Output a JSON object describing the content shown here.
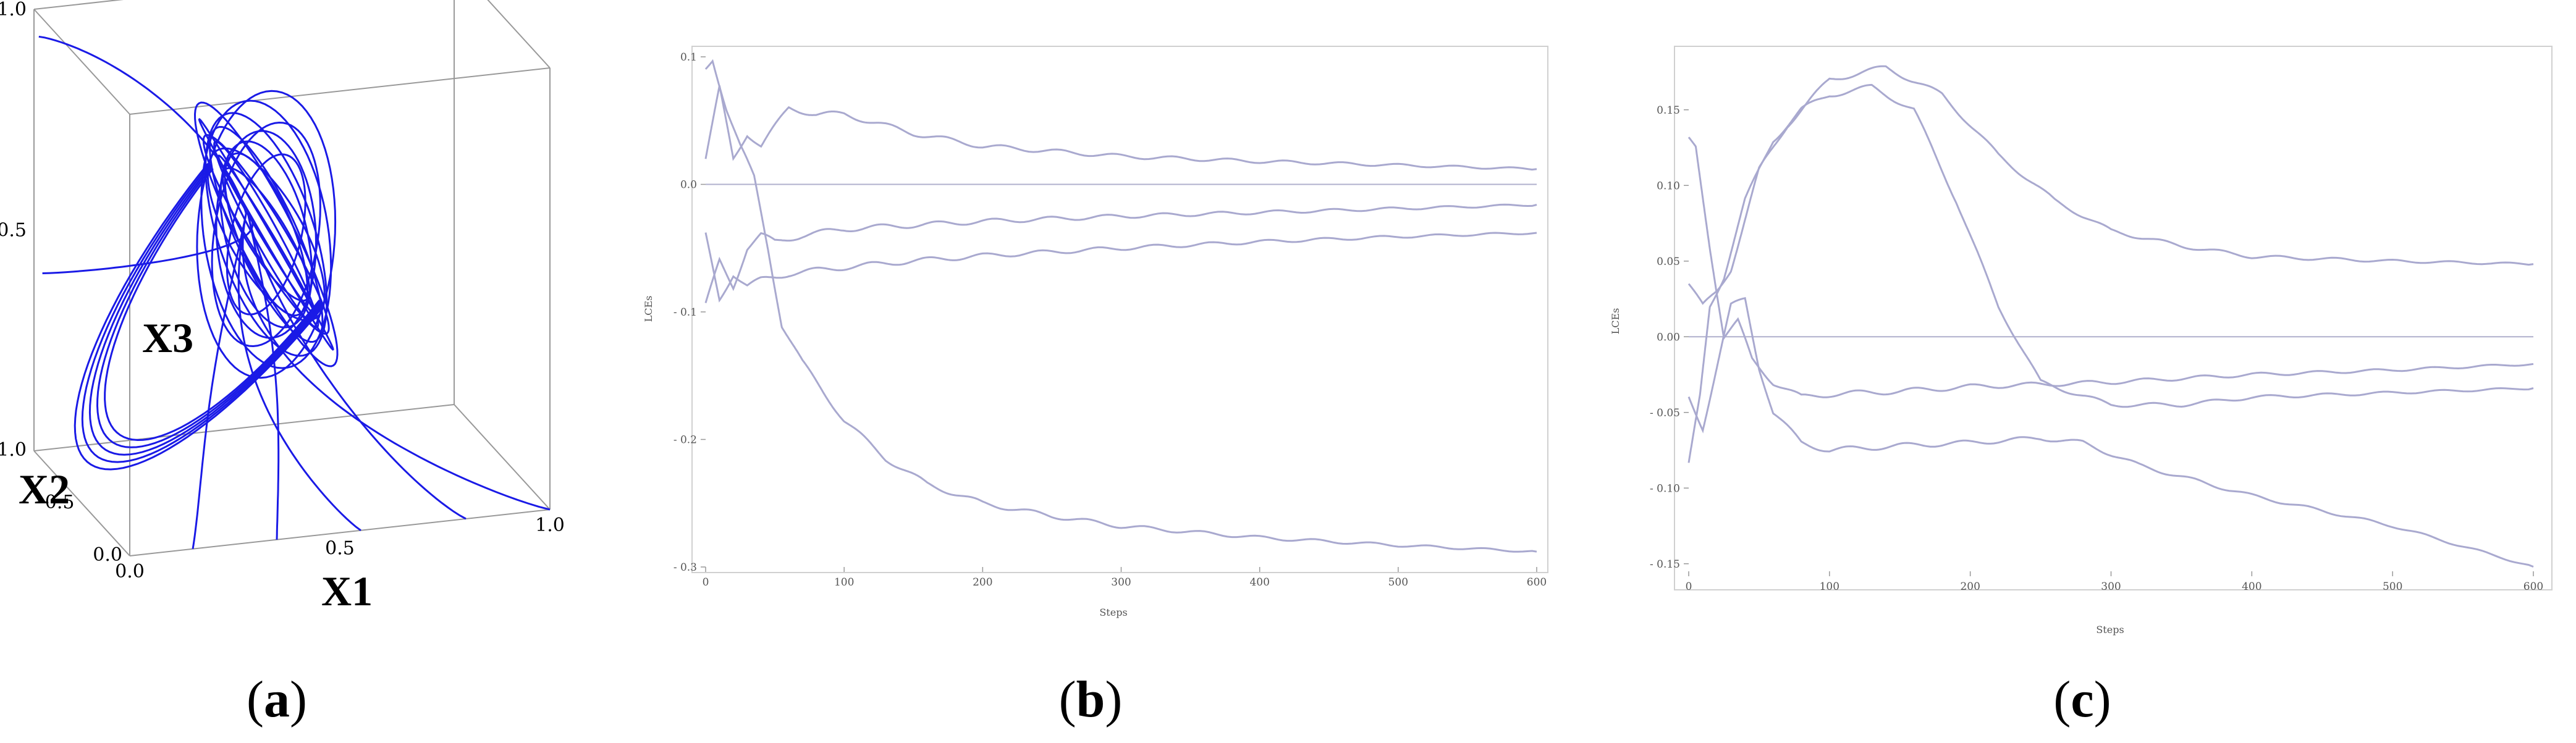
{
  "colors": {
    "series": "#a9a9cf",
    "attractor": "#1a1ae6",
    "frame": "#cccccc",
    "zero": "#b0b0cc"
  },
  "panels": [
    {
      "label_open": "(",
      "label_letter": "a",
      "label_close": ")"
    },
    {
      "label_open": "(",
      "label_letter": "b",
      "label_close": ")"
    },
    {
      "label_open": "(",
      "label_letter": "c",
      "label_close": ")"
    }
  ],
  "chart_data": [
    {
      "type": "line3d",
      "description_visible_axes": [
        "X1",
        "X2",
        "X3"
      ],
      "axes": {
        "x1": {
          "label": "X1",
          "ticks": [
            "0.0",
            "0.5",
            "1.0"
          ],
          "range": [
            0,
            1
          ]
        },
        "x2": {
          "label": "X2",
          "ticks": [
            "0.0",
            "0.5",
            "1.0"
          ],
          "range": [
            0,
            1
          ]
        },
        "x3": {
          "label": "X3",
          "ticks": [
            "0.5",
            "1.0"
          ],
          "range": [
            0,
            1
          ]
        }
      },
      "transient_starts": [
        [
          0.15,
          0,
          0
        ],
        [
          0.35,
          0,
          0
        ],
        [
          0.55,
          0,
          0
        ],
        [
          0.8,
          0,
          0
        ],
        [
          1.0,
          0,
          0
        ],
        [
          0.02,
          1.0,
          0.4
        ],
        [
          0.0,
          0.95,
          0.95
        ]
      ],
      "attractor": {
        "center": [
          0.45,
          0.55,
          0.55
        ],
        "radius": [
          0.18,
          0.22,
          0.28
        ]
      }
    },
    {
      "type": "line",
      "xlabel": "Steps",
      "ylabel": "LCEs",
      "xlim": [
        0,
        600
      ],
      "ylim": [
        -0.3,
        0.1
      ],
      "xticks": [
        0,
        100,
        200,
        300,
        400,
        500,
        600
      ],
      "yticks": [
        0.1,
        0.0,
        -0.1,
        -0.2,
        -0.3
      ],
      "ytick_labels": [
        "0.1",
        "0.0",
        "- 0.1",
        "- 0.2",
        "- 0.3"
      ],
      "series": [
        {
          "x": [
            0,
            10,
            20,
            30,
            40,
            60,
            80,
            100,
            150,
            200,
            300,
            400,
            500,
            600
          ],
          "y": [
            0.02,
            0.075,
            0.02,
            0.04,
            0.03,
            0.06,
            0.055,
            0.055,
            0.04,
            0.03,
            0.022,
            0.018,
            0.015,
            0.012
          ]
        },
        {
          "x": [
            0,
            10,
            20,
            30,
            40,
            50,
            70,
            100,
            150,
            200,
            300,
            400,
            500,
            600
          ],
          "y": [
            -0.095,
            -0.06,
            -0.08,
            -0.05,
            -0.04,
            -0.045,
            -0.04,
            -0.035,
            -0.032,
            -0.029,
            -0.025,
            -0.022,
            -0.019,
            -0.016
          ]
        },
        {
          "x": [
            0,
            10,
            20,
            30,
            40,
            60,
            100,
            150,
            200,
            300,
            400,
            500,
            600
          ],
          "y": [
            -0.04,
            -0.09,
            -0.07,
            -0.08,
            -0.075,
            -0.07,
            -0.065,
            -0.06,
            -0.056,
            -0.05,
            -0.045,
            -0.041,
            -0.038
          ]
        },
        {
          "x": [
            0,
            5,
            15,
            25,
            35,
            45,
            55,
            70,
            100,
            130,
            160,
            200,
            250,
            300,
            400,
            500,
            600
          ],
          "y": [
            0.09,
            0.098,
            0.06,
            0.03,
            0.005,
            -0.05,
            -0.11,
            -0.14,
            -0.185,
            -0.215,
            -0.235,
            -0.25,
            -0.26,
            -0.268,
            -0.277,
            -0.283,
            -0.288
          ]
        }
      ]
    },
    {
      "type": "line",
      "xlabel": "Steps",
      "ylabel": "LCEs",
      "xlim": [
        0,
        600
      ],
      "ylim": [
        -0.155,
        0.185
      ],
      "xticks": [
        0,
        100,
        200,
        300,
        400,
        500,
        600
      ],
      "yticks": [
        0.15,
        0.1,
        0.05,
        0.0,
        -0.05,
        -0.1,
        -0.15
      ],
      "ytick_labels": [
        "0.15",
        "0.10",
        "0.05",
        "0.00",
        "- 0.05",
        "- 0.10",
        "- 0.15"
      ],
      "series": [
        {
          "x": [
            0,
            10,
            20,
            30,
            50,
            70,
            100,
            140,
            180,
            220,
            260,
            300,
            350,
            400,
            500,
            600
          ],
          "y": [
            0.035,
            0.02,
            0.03,
            0.045,
            0.11,
            0.14,
            0.17,
            0.178,
            0.16,
            0.12,
            0.09,
            0.07,
            0.06,
            0.053,
            0.05,
            0.048
          ]
        },
        {
          "x": [
            0,
            8,
            15,
            25,
            40,
            60,
            80,
            100,
            130,
            160,
            190,
            220,
            250,
            300,
            350,
            400,
            500,
            600
          ],
          "y": [
            -0.085,
            -0.04,
            0.02,
            0.04,
            0.09,
            0.13,
            0.15,
            0.16,
            0.165,
            0.15,
            0.09,
            0.02,
            -0.03,
            -0.045,
            -0.045,
            -0.04,
            -0.037,
            -0.034
          ]
        },
        {
          "x": [
            0,
            5,
            15,
            25,
            35,
            45,
            60,
            80,
            100,
            150,
            200,
            300,
            400,
            500,
            600
          ],
          "y": [
            0.13,
            0.125,
            0.06,
            0.0,
            0.01,
            -0.015,
            -0.03,
            -0.04,
            -0.038,
            -0.036,
            -0.033,
            -0.03,
            -0.025,
            -0.022,
            -0.018
          ]
        },
        {
          "x": [
            0,
            10,
            20,
            30,
            40,
            50,
            60,
            80,
            100,
            150,
            200,
            250,
            280,
            320,
            400,
            500,
            600
          ],
          "y": [
            -0.04,
            -0.06,
            -0.02,
            0.02,
            0.025,
            -0.02,
            -0.05,
            -0.07,
            -0.075,
            -0.072,
            -0.07,
            -0.067,
            -0.07,
            -0.085,
            -0.105,
            -0.125,
            -0.152
          ]
        }
      ]
    }
  ]
}
